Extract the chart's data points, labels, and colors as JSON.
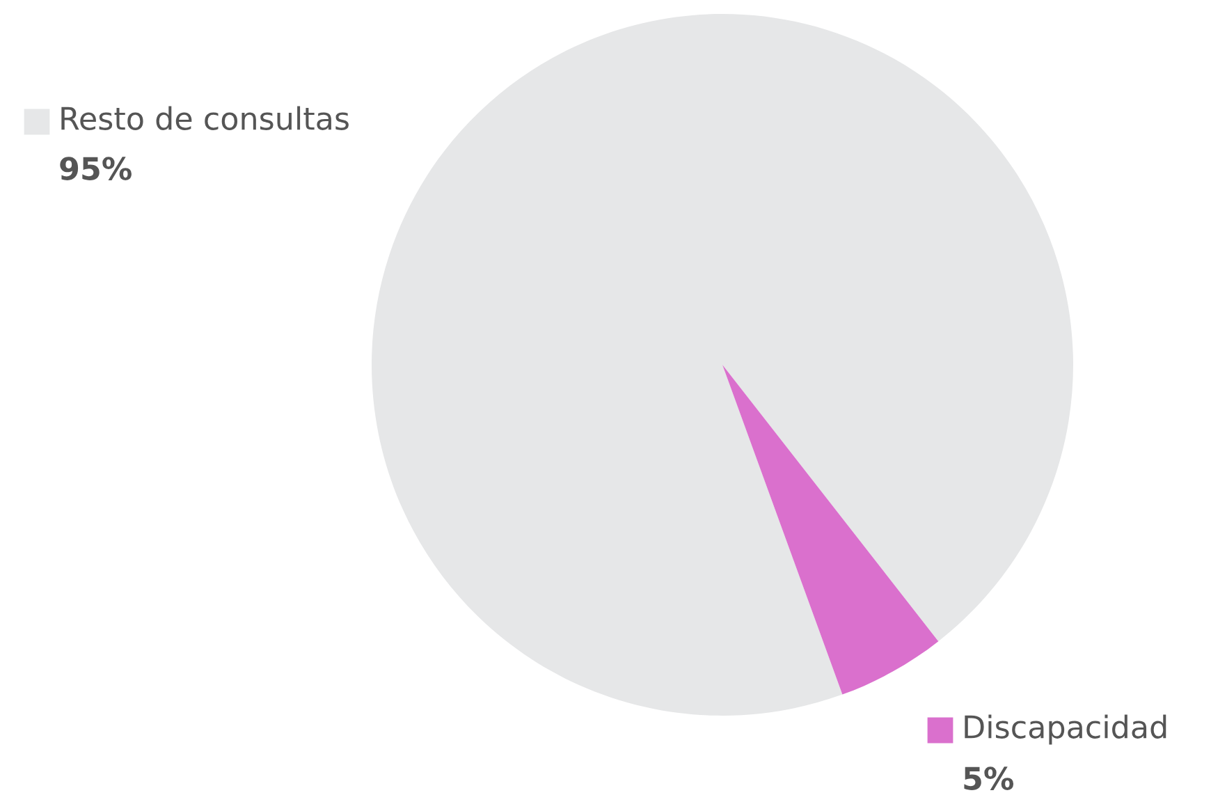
{
  "chart_data": {
    "type": "pie",
    "categories": [
      "Resto de consultas",
      "Discapacidad"
    ],
    "values": [
      95,
      5
    ],
    "colors": [
      "#e6e7e8",
      "#da70cd"
    ],
    "value_labels": [
      "95%",
      "5%"
    ],
    "legend": "left"
  }
}
